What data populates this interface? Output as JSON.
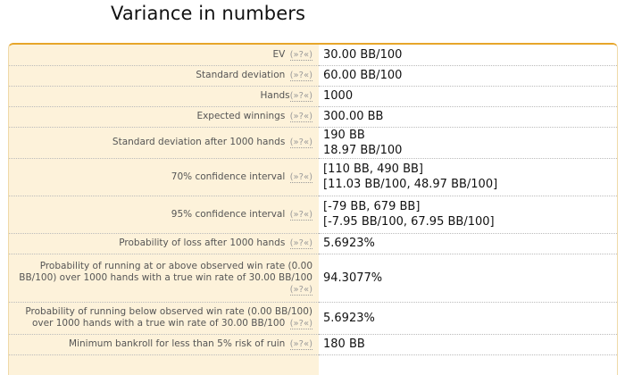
{
  "title": "Variance in numbers",
  "help_link": "(»?«)",
  "rows": [
    {
      "label": "EV",
      "help_tight": false,
      "values": [
        "30.00 BB/100"
      ]
    },
    {
      "label": "Standard deviation",
      "help_tight": false,
      "values": [
        "60.00 BB/100"
      ]
    },
    {
      "label": "Hands",
      "help_tight": true,
      "values": [
        "1000"
      ]
    },
    {
      "label": "Expected winnings",
      "help_tight": false,
      "values": [
        "300.00 BB"
      ]
    },
    {
      "label": "Standard deviation after 1000 hands",
      "help_tight": false,
      "values": [
        "190 BB",
        "18.97 BB/100"
      ]
    },
    {
      "label": "70% confidence interval",
      "help_tight": false,
      "values": [
        "[110 BB, 490 BB]",
        "[11.03 BB/100, 48.97 BB/100]"
      ]
    },
    {
      "label": "95% confidence interval",
      "help_tight": false,
      "values": [
        "[-79 BB, 679 BB]",
        "[-7.95 BB/100, 67.95 BB/100]"
      ]
    },
    {
      "label": "Probability of loss after 1000 hands",
      "help_tight": false,
      "values": [
        "5.6923%"
      ]
    },
    {
      "label": "Probability of running at or above observed win rate (0.00 BB/100) over 1000 hands with a true win rate of 30.00 BB/100",
      "help_tight": false,
      "values": [
        "94.3077%"
      ]
    },
    {
      "label": "Probability of running below observed win rate (0.00 BB/100) over 1000 hands with a true win rate of 30.00 BB/100",
      "help_tight": false,
      "values": [
        "5.6923%"
      ]
    },
    {
      "label": "Minimum bankroll for less than 5% risk of ruin",
      "help_tight": false,
      "values": [
        "180 BB"
      ]
    }
  ]
}
